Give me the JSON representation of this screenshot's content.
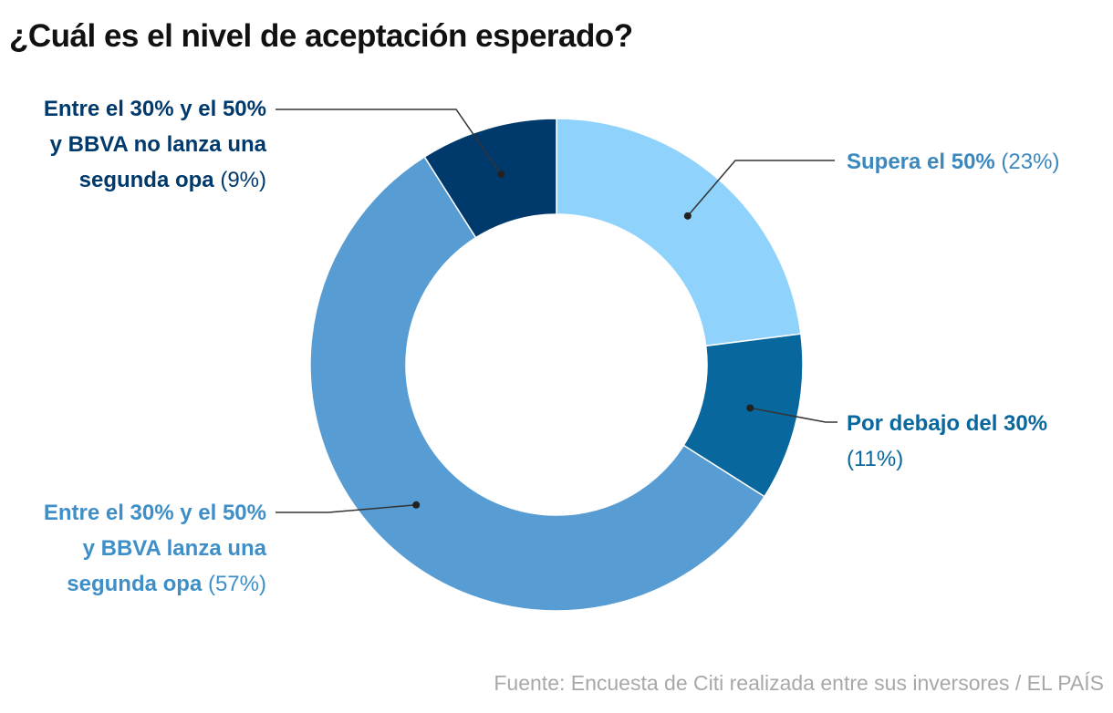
{
  "chart_data": {
    "type": "pie",
    "donut": true,
    "title": "¿Cuál es el nivel de aceptación esperado?",
    "source": "Fuente: Encuesta de Citi realizada entre sus inversores / EL PAÍS",
    "categories": [
      "Supera el 50%",
      "Por debajo del 30%",
      "Entre el 30% y el 50% y BBVA lanza una segunda opa",
      "Entre el 30% y el 50% y BBVA no lanza una segunda opa"
    ],
    "values": [
      23,
      11,
      57,
      9
    ],
    "value_labels": [
      "(23%)",
      "(11%)",
      "(57%)",
      "(9%)"
    ],
    "colors": [
      "#8fd3fd",
      "#08679c",
      "#579dd4",
      "#00396b"
    ],
    "label_colors": [
      "#3b88bf",
      "#08679c",
      "#3e8fc8",
      "#00396b"
    ]
  }
}
